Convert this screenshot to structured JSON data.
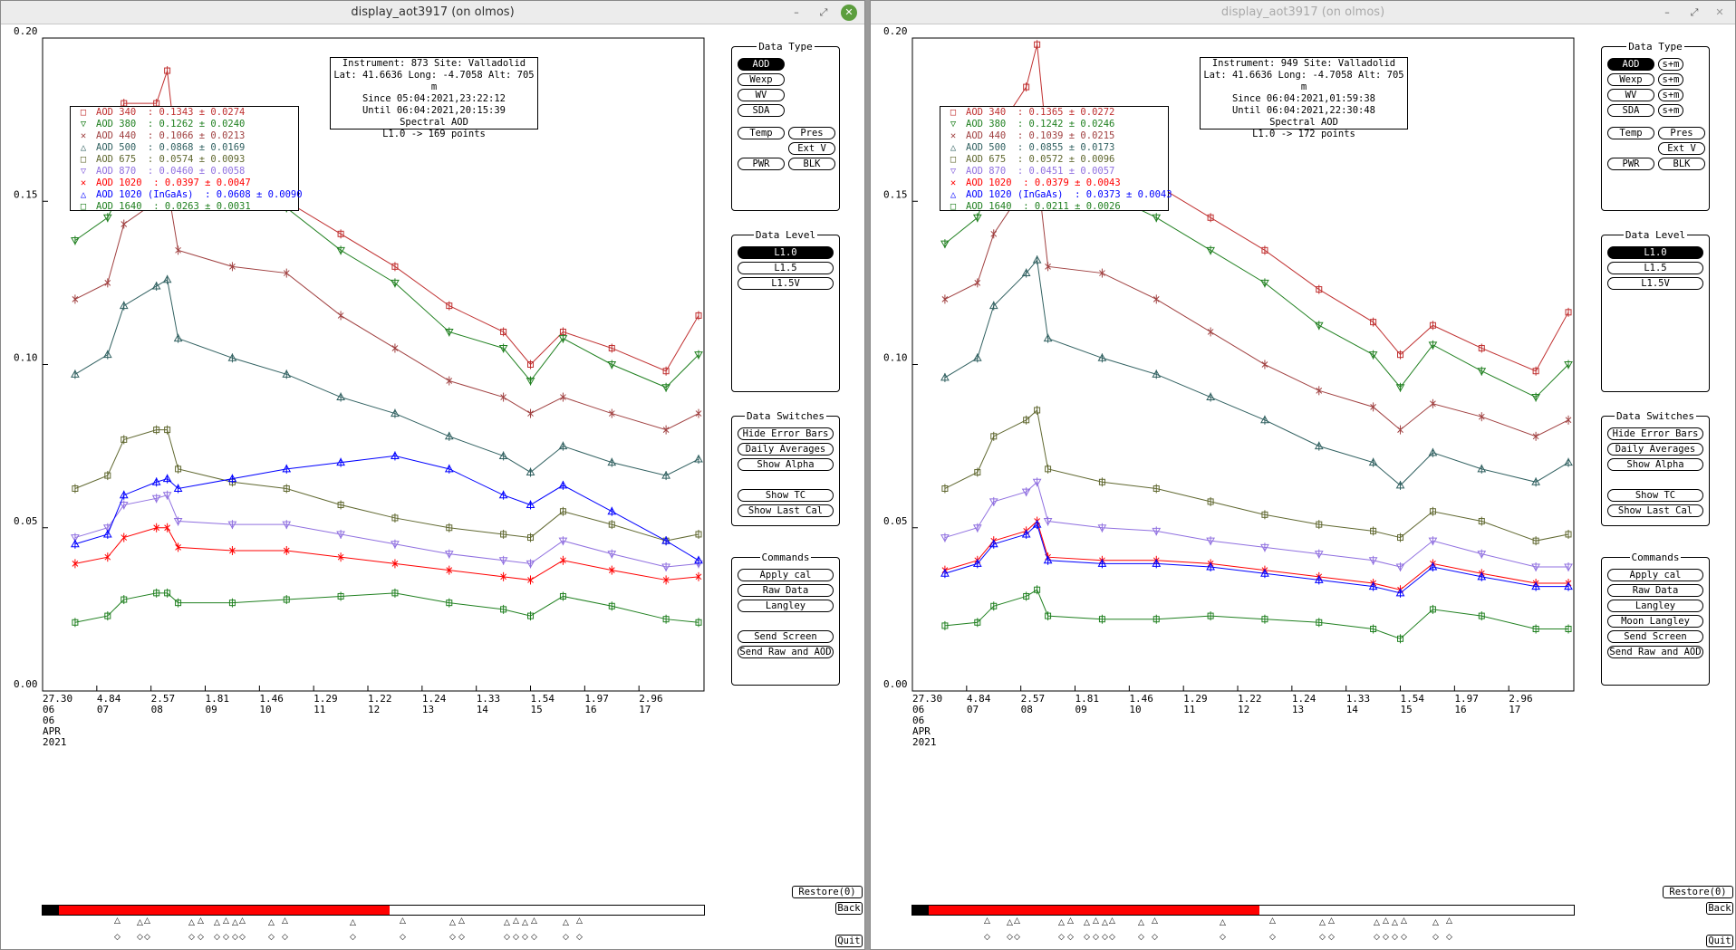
{
  "windows": [
    {
      "id": "left",
      "title": "display_aot3917 (on olmos)",
      "info": [
        "Instrument: 873 Site: Valladolid",
        "Lat: 41.6636 Long: -4.7058 Alt: 705 m",
        "Since 05:04:2021,23:22:12",
        "Until 06:04:2021,20:15:39",
        "Spectral AOD",
        "L1.0 -> 169 points"
      ],
      "legend": [
        {
          "label": "AOD 340  : 0.1343 ± 0.0274",
          "color": "#c03030",
          "marker": "□"
        },
        {
          "label": "AOD 380  : 0.1262 ± 0.0240",
          "color": "#208020",
          "marker": "▽"
        },
        {
          "label": "AOD 440  : 0.1066 ± 0.0213",
          "color": "#a04040",
          "marker": "✕"
        },
        {
          "label": "AOD 500  : 0.0868 ± 0.0169",
          "color": "#306060",
          "marker": "△"
        },
        {
          "label": "AOD 675  : 0.0574 ± 0.0093",
          "color": "#606830",
          "marker": "□"
        },
        {
          "label": "AOD 870  : 0.0460 ± 0.0058",
          "color": "#9070e0",
          "marker": "▽"
        },
        {
          "label": "AOD 1020  : 0.0397 ± 0.0047",
          "color": "#ff0000",
          "marker": "✕"
        },
        {
          "label": "AOD 1020 (InGaAs)  : 0.0608 ± 0.0090",
          "color": "#0000ff",
          "marker": "△"
        },
        {
          "label": "AOD 1640  : 0.0263 ± 0.0031",
          "color": "#208020",
          "marker": "□"
        }
      ]
    },
    {
      "id": "right",
      "title": "display_aot3917 (on olmos)",
      "info": [
        "Instrument: 949 Site: Valladolid",
        "Lat: 41.6636 Long: -4.7058 Alt: 705 m",
        "Since 06:04:2021,01:59:38",
        "Until 06:04:2021,22:30:48",
        "Spectral AOD",
        "L1.0 -> 172 points"
      ],
      "legend": [
        {
          "label": "AOD 340  : 0.1365 ± 0.0272",
          "color": "#c03030",
          "marker": "□"
        },
        {
          "label": "AOD 380  : 0.1242 ± 0.0246",
          "color": "#208020",
          "marker": "▽"
        },
        {
          "label": "AOD 440  : 0.1039 ± 0.0215",
          "color": "#a04040",
          "marker": "✕"
        },
        {
          "label": "AOD 500  : 0.0855 ± 0.0173",
          "color": "#306060",
          "marker": "△"
        },
        {
          "label": "AOD 675  : 0.0572 ± 0.0096",
          "color": "#606830",
          "marker": "□"
        },
        {
          "label": "AOD 870  : 0.0451 ± 0.0057",
          "color": "#9070e0",
          "marker": "▽"
        },
        {
          "label": "AOD 1020  : 0.0379 ± 0.0043",
          "color": "#ff0000",
          "marker": "✕"
        },
        {
          "label": "AOD 1020 (InGaAs)  : 0.0373 ± 0.0043",
          "color": "#0000ff",
          "marker": "△"
        },
        {
          "label": "AOD 1640  : 0.0211 ± 0.0026",
          "color": "#208020",
          "marker": "□"
        }
      ]
    }
  ],
  "panels": {
    "data_type": {
      "title": "Data Type",
      "aod": "AOD",
      "wexp": "Wexp",
      "wv": "WV",
      "sda": "SDA",
      "temp": "Temp",
      "pres": "Pres",
      "extv": "Ext V",
      "pwr": "PWR",
      "blk": "BLK",
      "spm": "s+m"
    },
    "data_level": {
      "title": "Data Level",
      "l10": "L1.0",
      "l15": "L1.5",
      "l15v": "L1.5V"
    },
    "data_switches": {
      "title": "Data Switches",
      "hide_error_bars": "Hide Error Bars",
      "daily_averages": "Daily Averages",
      "show_alpha": "Show Alpha",
      "show_tc": "Show TC",
      "show_last_cal": "Show Last Cal"
    },
    "commands": {
      "title": "Commands",
      "apply_cal": "Apply cal",
      "raw_data": "Raw Data",
      "langley": "Langley",
      "moon_langley": "Moon Langley",
      "send_screen": "Send Screen",
      "send_raw_and_aod": "Send Raw and AOD"
    },
    "restore": "Restore(0)",
    "back": "Back",
    "quit": "Quit"
  },
  "chart_data": [
    {
      "type": "scatter",
      "title": "",
      "ylim": [
        0.0,
        0.2
      ],
      "yticks": [
        "0.00",
        "0.05",
        "0.10",
        "0.15",
        "0.20"
      ],
      "xticks": [
        {
          "top": "27.30",
          "bottom": "06"
        },
        {
          "top": "4.84",
          "bottom": "07"
        },
        {
          "top": "2.57",
          "bottom": "08"
        },
        {
          "top": "1.81",
          "bottom": "09"
        },
        {
          "top": "1.46",
          "bottom": "10"
        },
        {
          "top": "1.29",
          "bottom": "11"
        },
        {
          "top": "1.22",
          "bottom": "12"
        },
        {
          "top": "1.24",
          "bottom": "13"
        },
        {
          "top": "1.33",
          "bottom": "14"
        },
        {
          "top": "1.54",
          "bottom": "15"
        },
        {
          "top": "1.97",
          "bottom": "16"
        },
        {
          "top": "2.96",
          "bottom": "17"
        }
      ],
      "xdate": [
        "06",
        "APR",
        "2021"
      ],
      "x_range": [
        6.0,
        18.2
      ],
      "key_x": [
        6.6,
        7.2,
        7.5,
        8.1,
        8.3,
        8.5,
        9.5,
        10.5,
        11.5,
        12.5,
        13.5,
        14.5,
        15.0,
        15.6,
        16.5,
        17.5,
        18.1
      ],
      "series": [
        {
          "name": "AOD 340",
          "color": "#c03030",
          "marker": "sq",
          "y": [
            0.15,
            0.16,
            0.18,
            0.18,
            0.19,
            0.16,
            0.155,
            0.15,
            0.14,
            0.13,
            0.118,
            0.11,
            0.1,
            0.11,
            0.105,
            0.098,
            0.115
          ]
        },
        {
          "name": "AOD 380",
          "color": "#208020",
          "marker": "tri-down",
          "y": [
            0.138,
            0.145,
            0.155,
            0.165,
            0.17,
            0.158,
            0.152,
            0.148,
            0.135,
            0.125,
            0.11,
            0.105,
            0.095,
            0.108,
            0.1,
            0.093,
            0.103
          ]
        },
        {
          "name": "AOD 440",
          "color": "#a04040",
          "marker": "x",
          "y": [
            0.12,
            0.125,
            0.143,
            0.15,
            0.155,
            0.135,
            0.13,
            0.128,
            0.115,
            0.105,
            0.095,
            0.09,
            0.085,
            0.09,
            0.085,
            0.08,
            0.085
          ]
        },
        {
          "name": "AOD 500",
          "color": "#306060",
          "marker": "tri-up",
          "y": [
            0.097,
            0.103,
            0.118,
            0.124,
            0.126,
            0.108,
            0.102,
            0.097,
            0.09,
            0.085,
            0.078,
            0.072,
            0.067,
            0.075,
            0.07,
            0.066,
            0.071
          ]
        },
        {
          "name": "AOD 675",
          "color": "#606830",
          "marker": "sq",
          "y": [
            0.062,
            0.066,
            0.077,
            0.08,
            0.08,
            0.068,
            0.064,
            0.062,
            0.057,
            0.053,
            0.05,
            0.048,
            0.047,
            0.055,
            0.051,
            0.046,
            0.048
          ]
        },
        {
          "name": "AOD 870",
          "color": "#9070e0",
          "marker": "tri-down",
          "y": [
            0.047,
            0.05,
            0.057,
            0.059,
            0.06,
            0.052,
            0.051,
            0.051,
            0.048,
            0.045,
            0.042,
            0.04,
            0.039,
            0.046,
            0.042,
            0.038,
            0.039
          ]
        },
        {
          "name": "AOD 1020",
          "color": "#ff0000",
          "marker": "x",
          "y": [
            0.039,
            0.041,
            0.047,
            0.05,
            0.05,
            0.044,
            0.043,
            0.043,
            0.041,
            0.039,
            0.037,
            0.035,
            0.034,
            0.04,
            0.037,
            0.034,
            0.035
          ]
        },
        {
          "name": "AOD 1020 (InGaAs)",
          "color": "#0000ff",
          "marker": "tri-up",
          "y": [
            0.045,
            0.048,
            0.06,
            0.064,
            0.065,
            0.062,
            0.065,
            0.068,
            0.07,
            0.072,
            0.068,
            0.06,
            0.057,
            0.063,
            0.055,
            0.046,
            0.04
          ]
        },
        {
          "name": "AOD 1640",
          "color": "#208020",
          "marker": "sq",
          "y": [
            0.021,
            0.023,
            0.028,
            0.03,
            0.03,
            0.027,
            0.027,
            0.028,
            0.029,
            0.03,
            0.027,
            0.025,
            0.023,
            0.029,
            0.026,
            0.022,
            0.021
          ]
        }
      ]
    },
    {
      "type": "scatter",
      "title": "",
      "ylim": [
        0.0,
        0.2
      ],
      "yticks": [
        "0.00",
        "0.05",
        "0.10",
        "0.15",
        "0.20"
      ],
      "xticks": [
        {
          "top": "27.30",
          "bottom": "06"
        },
        {
          "top": "4.84",
          "bottom": "07"
        },
        {
          "top": "2.57",
          "bottom": "08"
        },
        {
          "top": "1.81",
          "bottom": "09"
        },
        {
          "top": "1.46",
          "bottom": "10"
        },
        {
          "top": "1.29",
          "bottom": "11"
        },
        {
          "top": "1.22",
          "bottom": "12"
        },
        {
          "top": "1.24",
          "bottom": "13"
        },
        {
          "top": "1.33",
          "bottom": "14"
        },
        {
          "top": "1.54",
          "bottom": "15"
        },
        {
          "top": "1.97",
          "bottom": "16"
        },
        {
          "top": "2.96",
          "bottom": "17"
        }
      ],
      "xdate": [
        "06",
        "APR",
        "2021"
      ],
      "x_range": [
        6.0,
        18.2
      ],
      "key_x": [
        6.6,
        7.2,
        7.5,
        8.1,
        8.3,
        8.5,
        9.5,
        10.5,
        11.5,
        12.5,
        13.5,
        14.5,
        15.0,
        15.6,
        16.5,
        17.5,
        18.1
      ],
      "series": [
        {
          "name": "AOD 340",
          "color": "#c03030",
          "marker": "sq",
          "y": [
            0.15,
            0.155,
            0.17,
            0.185,
            0.198,
            0.165,
            0.16,
            0.155,
            0.145,
            0.135,
            0.123,
            0.113,
            0.103,
            0.112,
            0.105,
            0.098,
            0.116
          ]
        },
        {
          "name": "AOD 380",
          "color": "#208020",
          "marker": "tri-down",
          "y": [
            0.137,
            0.145,
            0.16,
            0.17,
            0.175,
            0.158,
            0.153,
            0.145,
            0.135,
            0.125,
            0.112,
            0.103,
            0.093,
            0.106,
            0.098,
            0.09,
            0.1
          ]
        },
        {
          "name": "AOD 440",
          "color": "#a04040",
          "marker": "x",
          "y": [
            0.12,
            0.125,
            0.14,
            0.155,
            0.16,
            0.13,
            0.128,
            0.12,
            0.11,
            0.1,
            0.092,
            0.087,
            0.08,
            0.088,
            0.084,
            0.078,
            0.083
          ]
        },
        {
          "name": "AOD 500",
          "color": "#306060",
          "marker": "tri-up",
          "y": [
            0.096,
            0.102,
            0.118,
            0.128,
            0.132,
            0.108,
            0.102,
            0.097,
            0.09,
            0.083,
            0.075,
            0.07,
            0.063,
            0.073,
            0.068,
            0.064,
            0.07
          ]
        },
        {
          "name": "AOD 675",
          "color": "#606830",
          "marker": "sq",
          "y": [
            0.062,
            0.067,
            0.078,
            0.083,
            0.086,
            0.068,
            0.064,
            0.062,
            0.058,
            0.054,
            0.051,
            0.049,
            0.047,
            0.055,
            0.052,
            0.046,
            0.048
          ]
        },
        {
          "name": "AOD 870",
          "color": "#9070e0",
          "marker": "tri-down",
          "y": [
            0.047,
            0.05,
            0.058,
            0.061,
            0.064,
            0.052,
            0.05,
            0.049,
            0.046,
            0.044,
            0.042,
            0.04,
            0.038,
            0.046,
            0.042,
            0.038,
            0.038
          ]
        },
        {
          "name": "AOD 1020",
          "color": "#ff0000",
          "marker": "x",
          "y": [
            0.037,
            0.04,
            0.046,
            0.049,
            0.052,
            0.041,
            0.04,
            0.04,
            0.039,
            0.037,
            0.035,
            0.033,
            0.031,
            0.039,
            0.036,
            0.033,
            0.033
          ]
        },
        {
          "name": "AOD 1020 (InGaAs)",
          "color": "#0000ff",
          "marker": "tri-up",
          "y": [
            0.036,
            0.039,
            0.045,
            0.048,
            0.051,
            0.04,
            0.039,
            0.039,
            0.038,
            0.036,
            0.034,
            0.032,
            0.03,
            0.038,
            0.035,
            0.032,
            0.032
          ]
        },
        {
          "name": "AOD 1640",
          "color": "#208020",
          "marker": "sq",
          "y": [
            0.02,
            0.021,
            0.026,
            0.029,
            0.031,
            0.023,
            0.022,
            0.022,
            0.023,
            0.022,
            0.021,
            0.019,
            0.016,
            0.025,
            0.023,
            0.019,
            0.019
          ]
        }
      ]
    }
  ]
}
